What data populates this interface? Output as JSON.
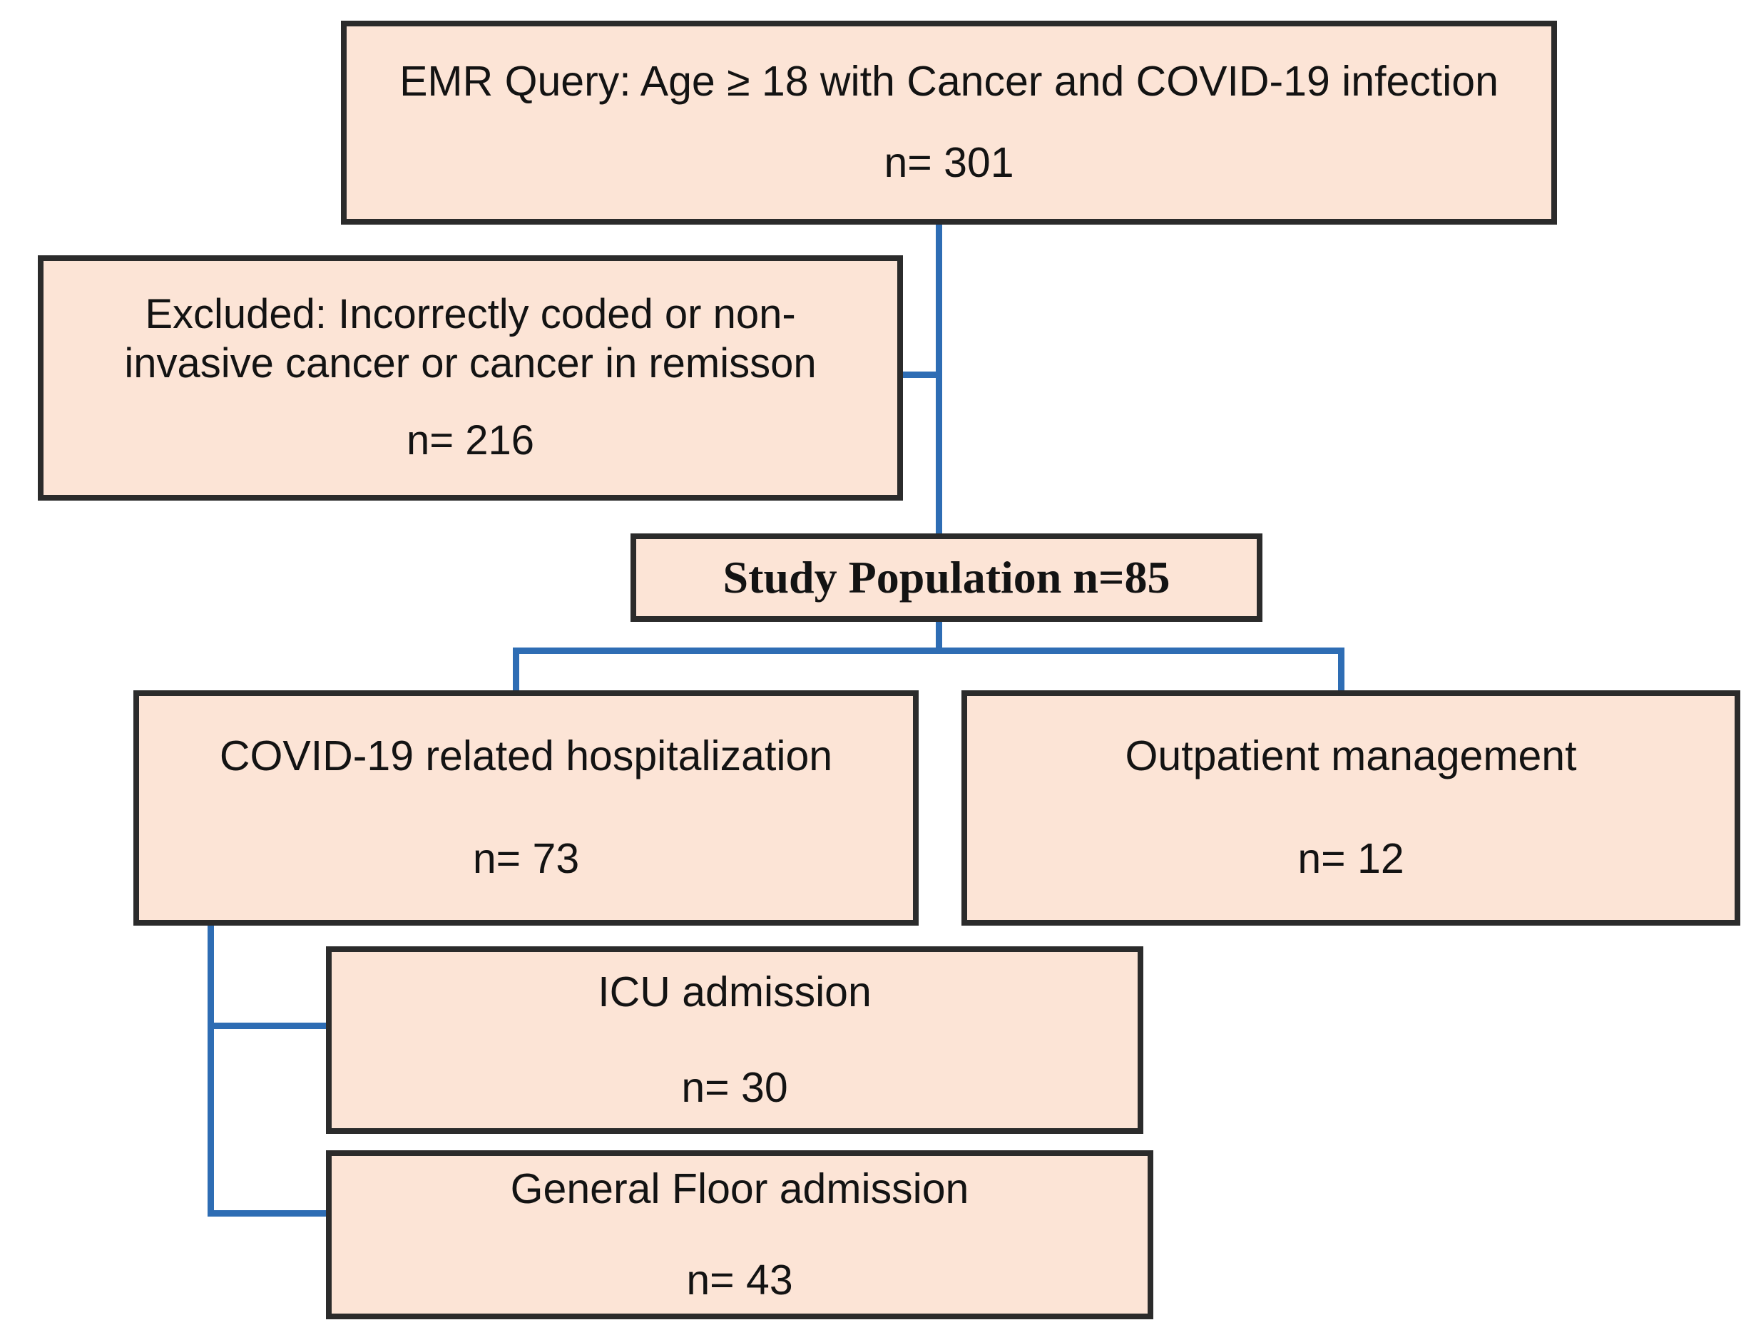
{
  "diagram": {
    "type": "flowchart",
    "colors": {
      "box_fill": "#FCE4D6",
      "box_border": "#2B2B2B",
      "connector_blue": "#2E6DB4",
      "text": "#131313",
      "background": "#FFFFFF"
    },
    "nodes": {
      "emr_query": {
        "line1": "EMR Query: Age ≥ 18 with Cancer and COVID-19 infection",
        "count": "n= 301"
      },
      "excluded": {
        "line1": "Excluded: Incorrectly coded or non-",
        "line2": "invasive cancer or cancer in remisson",
        "count": "n= 216"
      },
      "study_population": {
        "label": "Study Population n=85"
      },
      "hospitalization": {
        "label": "COVID-19 related hospitalization",
        "count": "n= 73"
      },
      "outpatient": {
        "label": "Outpatient management",
        "count": "n= 12"
      },
      "icu": {
        "label": "ICU admission",
        "count": "n= 30"
      },
      "general_floor": {
        "label": "General Floor admission",
        "count": "n= 43"
      }
    }
  }
}
